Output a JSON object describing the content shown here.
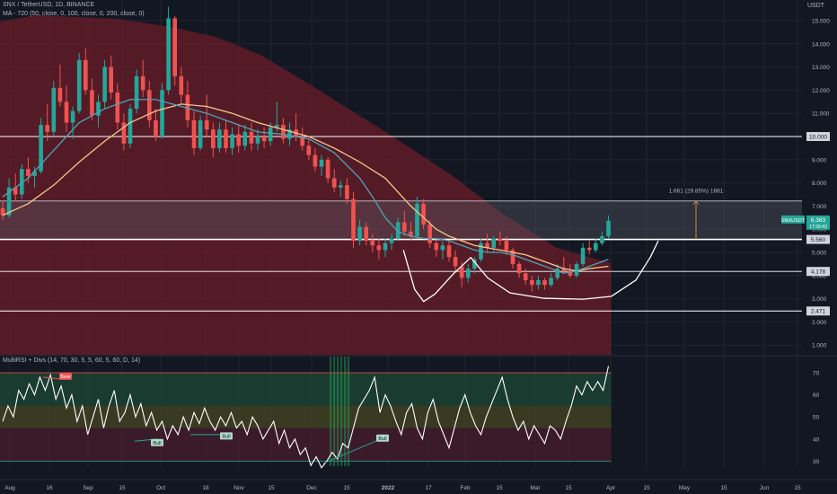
{
  "header": {
    "symbol_line": "SNX / TetherUSD, 1D, BINANCE",
    "ma_line": "MA - 720 (50, close, 0, 100, close, 0, 200, close, 0)",
    "currency": "USDT"
  },
  "osc_title": "MultiRSI + Divs (14, 70, 30, 5, 5, 60, 5, 60, D, 14)",
  "colors": {
    "background": "#131722",
    "up": "#26a69a",
    "down": "#ef5350",
    "ma50": "#4fa3b7",
    "ma100": "#f5c88a",
    "cloud": "#6b1d2a",
    "resistance_zone": "#5d606b",
    "target": "#c8894a",
    "current_price": "#26a69a"
  },
  "chart_data": [
    {
      "type": "candlestick",
      "title": "SNX / TetherUSD, 1D, BINANCE",
      "ylim": [
        0,
        16
      ],
      "yticks": [
        "15.000",
        "14.000",
        "13.000",
        "12.000",
        "11.000",
        "10.000",
        "9.000",
        "8.000",
        "7.000",
        "6.000",
        "5.000",
        "4.000",
        "3.000",
        "2.000",
        "1.000"
      ],
      "xticks": [
        "Aug",
        "16",
        "Sep",
        "15",
        "Oct",
        "18",
        "Nov",
        "15",
        "Dec",
        "15",
        "2022",
        "17",
        "Feb",
        "15",
        "Mar",
        "15",
        "Apr",
        "15",
        "May",
        "15",
        "Jun",
        "15"
      ],
      "price_labels": [
        {
          "label": "10.000",
          "value": 10.0
        },
        {
          "label": "5.560",
          "value": 5.56
        },
        {
          "label": "4.178",
          "value": 4.178
        },
        {
          "label": "2.471",
          "value": 2.471
        }
      ],
      "current_price": {
        "symbol": "SNXUSDT",
        "value": "6.363",
        "countdown": "17:39:43"
      },
      "resistance_zone": [
        5.56,
        7.22
      ],
      "measure": {
        "label": "1.661 (29.85%) 1661",
        "from": 5.56,
        "to": 7.22
      },
      "candles": [
        [
          6.9,
          7.25,
          6.4,
          6.6
        ],
        [
          6.6,
          8.2,
          6.5,
          7.8
        ],
        [
          7.8,
          8.4,
          7.2,
          7.5
        ],
        [
          7.5,
          8.8,
          7.3,
          8.6
        ],
        [
          8.6,
          9.1,
          8.0,
          8.3
        ],
        [
          8.3,
          8.7,
          7.8,
          8.5
        ],
        [
          8.5,
          10.8,
          8.4,
          10.5
        ],
        [
          10.5,
          11.4,
          9.8,
          10.2
        ],
        [
          10.2,
          12.4,
          10.0,
          12.1
        ],
        [
          12.1,
          13.1,
          11.3,
          11.5
        ],
        [
          11.5,
          12.2,
          10.2,
          10.6
        ],
        [
          10.6,
          11.3,
          9.9,
          11.1
        ],
        [
          11.1,
          13.6,
          11.0,
          13.3
        ],
        [
          13.3,
          13.8,
          11.8,
          12.0
        ],
        [
          12.0,
          12.5,
          10.7,
          10.9
        ],
        [
          10.9,
          11.8,
          10.4,
          11.5
        ],
        [
          11.5,
          13.3,
          11.2,
          13.0
        ],
        [
          13.0,
          13.5,
          11.6,
          11.9
        ],
        [
          11.9,
          12.3,
          10.3,
          10.6
        ],
        [
          10.6,
          11.0,
          9.4,
          9.7
        ],
        [
          9.7,
          11.4,
          9.5,
          11.2
        ],
        [
          11.2,
          12.9,
          11.0,
          12.6
        ],
        [
          12.6,
          13.3,
          11.7,
          12.0
        ],
        [
          12.0,
          12.4,
          10.4,
          10.7
        ],
        [
          10.7,
          11.2,
          9.8,
          10.0
        ],
        [
          10.0,
          12.3,
          9.9,
          12.0
        ],
        [
          12.0,
          15.6,
          11.8,
          15.1
        ],
        [
          15.1,
          15.2,
          12.2,
          12.6
        ],
        [
          12.6,
          13.0,
          11.4,
          11.8
        ],
        [
          11.8,
          12.4,
          10.4,
          10.7
        ],
        [
          10.7,
          11.1,
          9.2,
          9.5
        ],
        [
          9.5,
          10.9,
          9.4,
          10.7
        ],
        [
          10.7,
          11.8,
          10.0,
          10.3
        ],
        [
          10.3,
          10.6,
          9.1,
          9.5
        ],
        [
          9.5,
          10.6,
          9.3,
          10.3
        ],
        [
          10.3,
          10.7,
          9.3,
          9.5
        ],
        [
          9.5,
          10.4,
          9.2,
          10.1
        ],
        [
          10.1,
          10.5,
          9.3,
          9.6
        ],
        [
          9.6,
          10.5,
          9.4,
          10.2
        ],
        [
          10.2,
          10.6,
          9.4,
          9.7
        ],
        [
          9.7,
          10.3,
          9.4,
          10.0
        ],
        [
          10.0,
          10.4,
          9.5,
          9.8
        ],
        [
          9.8,
          10.6,
          9.6,
          10.4
        ],
        [
          10.4,
          11.5,
          10.2,
          10.5
        ],
        [
          10.5,
          10.8,
          9.7,
          9.9
        ],
        [
          9.9,
          10.6,
          9.6,
          10.3
        ],
        [
          10.3,
          11.0,
          9.8,
          10.0
        ],
        [
          10.0,
          10.4,
          9.4,
          9.6
        ],
        [
          9.6,
          9.9,
          9.0,
          9.2
        ],
        [
          9.2,
          9.5,
          8.5,
          8.7
        ],
        [
          8.7,
          9.2,
          8.3,
          9.0
        ],
        [
          9.0,
          9.1,
          8.0,
          8.2
        ],
        [
          8.2,
          8.6,
          7.6,
          7.8
        ],
        [
          7.8,
          8.1,
          7.4,
          7.9
        ],
        [
          7.9,
          8.2,
          7.1,
          7.3
        ],
        [
          7.3,
          7.6,
          5.2,
          5.5
        ],
        [
          5.5,
          6.4,
          5.3,
          6.1
        ],
        [
          6.1,
          6.3,
          5.3,
          5.5
        ],
        [
          5.5,
          5.8,
          5.0,
          5.3
        ],
        [
          5.3,
          5.6,
          4.7,
          5.1
        ],
        [
          5.1,
          5.6,
          4.8,
          5.4
        ],
        [
          5.4,
          5.8,
          5.1,
          5.6
        ],
        [
          5.6,
          6.5,
          5.5,
          6.3
        ],
        [
          6.3,
          6.8,
          5.7,
          5.9
        ],
        [
          5.9,
          6.3,
          5.5,
          5.7
        ],
        [
          5.7,
          7.4,
          5.6,
          7.1
        ],
        [
          7.1,
          7.3,
          6.0,
          6.2
        ],
        [
          6.2,
          6.4,
          5.2,
          5.4
        ],
        [
          5.4,
          5.6,
          4.8,
          5.1
        ],
        [
          5.1,
          5.5,
          4.7,
          5.3
        ],
        [
          5.3,
          5.5,
          4.6,
          4.8
        ],
        [
          4.8,
          5.1,
          4.2,
          4.4
        ],
        [
          4.4,
          4.6,
          3.5,
          3.9
        ],
        [
          3.9,
          4.5,
          3.7,
          4.3
        ],
        [
          4.3,
          4.8,
          4.1,
          4.7
        ],
        [
          4.7,
          5.6,
          4.6,
          5.4
        ],
        [
          5.4,
          5.8,
          5.0,
          5.2
        ],
        [
          5.2,
          5.7,
          5.0,
          5.6
        ],
        [
          5.6,
          5.9,
          5.3,
          5.5
        ],
        [
          5.5,
          5.7,
          4.9,
          5.1
        ],
        [
          5.1,
          5.2,
          4.3,
          4.5
        ],
        [
          4.5,
          4.6,
          3.9,
          4.1
        ],
        [
          4.1,
          4.3,
          3.6,
          3.8
        ],
        [
          3.8,
          4.0,
          3.3,
          3.6
        ],
        [
          3.6,
          4.0,
          3.4,
          3.8
        ],
        [
          3.8,
          3.9,
          3.4,
          3.6
        ],
        [
          3.6,
          4.1,
          3.5,
          3.9
        ],
        [
          3.9,
          4.5,
          3.8,
          4.3
        ],
        [
          4.3,
          4.8,
          4.1,
          4.2
        ],
        [
          4.2,
          4.5,
          3.9,
          4.0
        ],
        [
          4.0,
          4.6,
          3.9,
          4.5
        ],
        [
          4.5,
          5.4,
          4.4,
          5.2
        ],
        [
          5.2,
          5.5,
          4.9,
          5.1
        ],
        [
          5.1,
          5.6,
          5.0,
          5.4
        ],
        [
          5.4,
          5.9,
          5.3,
          5.7
        ],
        [
          5.7,
          6.6,
          5.6,
          6.36
        ]
      ],
      "ma50": [
        [
          0,
          7.4
        ],
        [
          4,
          8.2
        ],
        [
          8,
          9.4
        ],
        [
          12,
          10.6
        ],
        [
          16,
          11.2
        ],
        [
          20,
          11.6
        ],
        [
          24,
          11.6
        ],
        [
          28,
          11.3
        ],
        [
          32,
          11.0
        ],
        [
          36,
          10.6
        ],
        [
          40,
          10.2
        ],
        [
          44,
          10.1
        ],
        [
          48,
          9.9
        ],
        [
          52,
          9.3
        ],
        [
          56,
          8.2
        ],
        [
          58,
          7.4
        ],
        [
          60,
          6.5
        ],
        [
          62,
          5.9
        ],
        [
          64,
          5.7
        ],
        [
          66,
          5.6
        ],
        [
          68,
          5.6
        ],
        [
          70,
          5.5
        ],
        [
          72,
          5.3
        ],
        [
          74,
          5.1
        ],
        [
          76,
          5.0
        ],
        [
          78,
          5.0
        ],
        [
          80,
          4.9
        ],
        [
          82,
          4.7
        ],
        [
          84,
          4.5
        ],
        [
          86,
          4.3
        ],
        [
          88,
          4.1
        ],
        [
          90,
          4.2
        ],
        [
          92,
          4.4
        ],
        [
          95,
          4.7
        ]
      ],
      "ma100": [
        [
          0,
          6.6
        ],
        [
          4,
          7.1
        ],
        [
          8,
          7.9
        ],
        [
          12,
          8.9
        ],
        [
          16,
          9.8
        ],
        [
          20,
          10.6
        ],
        [
          24,
          11.1
        ],
        [
          28,
          11.4
        ],
        [
          32,
          11.3
        ],
        [
          36,
          11.0
        ],
        [
          40,
          10.6
        ],
        [
          44,
          10.3
        ],
        [
          48,
          10.0
        ],
        [
          52,
          9.5
        ],
        [
          56,
          8.9
        ],
        [
          60,
          8.2
        ],
        [
          62,
          7.6
        ],
        [
          64,
          7.0
        ],
        [
          66,
          6.5
        ],
        [
          68,
          6.0
        ],
        [
          70,
          5.7
        ],
        [
          72,
          5.5
        ],
        [
          74,
          5.3
        ],
        [
          76,
          5.2
        ],
        [
          78,
          5.1
        ],
        [
          80,
          5.0
        ],
        [
          82,
          4.9
        ],
        [
          84,
          4.7
        ],
        [
          86,
          4.5
        ],
        [
          88,
          4.3
        ],
        [
          90,
          4.2
        ],
        [
          92,
          4.3
        ],
        [
          95,
          4.4
        ]
      ],
      "cup_and_handle": [
        [
          14.5,
          5.1
        ],
        [
          15.5,
          3.4
        ],
        [
          16.3,
          2.88
        ],
        [
          17.3,
          3.2
        ],
        [
          19,
          4.1
        ],
        [
          20.5,
          4.78
        ],
        [
          22,
          3.9
        ],
        [
          24,
          3.25
        ],
        [
          27,
          3.02
        ],
        [
          30.5,
          2.98
        ],
        [
          33,
          3.1
        ],
        [
          35.2,
          3.8
        ],
        [
          36.5,
          4.8
        ],
        [
          37.2,
          5.5
        ]
      ]
    },
    {
      "type": "line",
      "title": "MultiRSI + Divs (14, 70, 30, 5, 5, 60, 5, 60, D, 14)",
      "ylim": [
        22,
        78
      ],
      "yticks": [
        "70",
        "60",
        "50",
        "40",
        "30"
      ],
      "labels": [
        "Bear",
        "Bull",
        "Bull",
        "Bull"
      ],
      "rsi": [
        48,
        55,
        50,
        62,
        58,
        65,
        60,
        68,
        62,
        69,
        58,
        64,
        54,
        60,
        48,
        55,
        42,
        50,
        58,
        45,
        55,
        62,
        48,
        52,
        60,
        50,
        56,
        46,
        52,
        44,
        48,
        40,
        46,
        42,
        50,
        44,
        52,
        47,
        54,
        48,
        44,
        50,
        46,
        52,
        45,
        48,
        42,
        50,
        46,
        40,
        44,
        48,
        38,
        44,
        36,
        40,
        33,
        36,
        28,
        32,
        27,
        30,
        34,
        31,
        38,
        36,
        45,
        54,
        58,
        62,
        68,
        52,
        60,
        55,
        48,
        42,
        52,
        56,
        45,
        40,
        52,
        58,
        48,
        42,
        36,
        45,
        54,
        60,
        52,
        46,
        42,
        50,
        56,
        62,
        68,
        58,
        50,
        44,
        48,
        40,
        46,
        42,
        38,
        46,
        44,
        40,
        48,
        55,
        64,
        60,
        66,
        62,
        66,
        62,
        73
      ]
    }
  ]
}
